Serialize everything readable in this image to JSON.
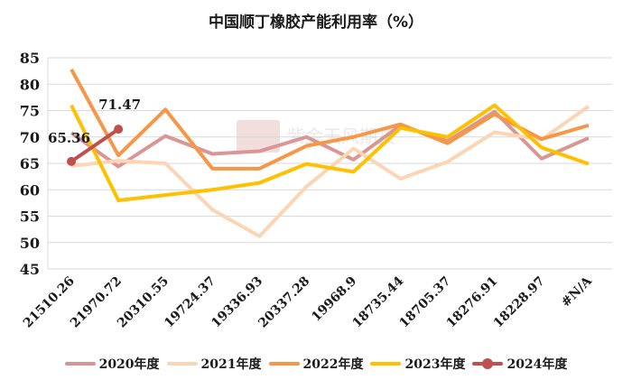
{
  "chart_data": {
    "type": "line",
    "title": "中国顺丁橡胶产能利用率（%）",
    "xlabel": "",
    "ylabel": "",
    "ylim": [
      45,
      85
    ],
    "yticks": [
      45,
      50,
      55,
      60,
      65,
      70,
      75,
      80,
      85
    ],
    "grid": true,
    "legend_position": "bottom",
    "categories": [
      "21510.26",
      "21970.72",
      "20310.55",
      "19724.37",
      "19336.93",
      "20337.28",
      "19968.9",
      "18735.44",
      "18705.37",
      "18276.91",
      "18228.97",
      "#N/A"
    ],
    "series": [
      {
        "name": "2020年度",
        "color": "#D99694",
        "values": [
          70.8,
          64.4,
          70.2,
          66.8,
          67.3,
          70.0,
          65.7,
          72.2,
          69.2,
          74.8,
          65.9,
          69.8
        ]
      },
      {
        "name": "2021年度",
        "color": "#FCD5B5",
        "values": [
          64.5,
          65.5,
          65.0,
          56.2,
          51.2,
          60.6,
          67.8,
          62.1,
          65.3,
          70.9,
          69.5,
          75.8
        ]
      },
      {
        "name": "2022年度",
        "color": "#F79646",
        "values": [
          82.8,
          66.5,
          75.2,
          64.0,
          64.0,
          68.3,
          70.0,
          72.4,
          68.8,
          74.3,
          69.6,
          72.2
        ]
      },
      {
        "name": "2023年度",
        "color": "#FFC000",
        "values": [
          76.0,
          58.0,
          59.0,
          60.0,
          61.3,
          64.9,
          63.4,
          71.7,
          70.0,
          76.0,
          68.0,
          64.9
        ]
      },
      {
        "name": "2024年度",
        "color": "#C0504D",
        "values": [
          65.36,
          71.47
        ],
        "markers": true,
        "data_labels": [
          "65.36",
          "71.47"
        ]
      }
    ]
  },
  "watermark": "紫金天风期货"
}
